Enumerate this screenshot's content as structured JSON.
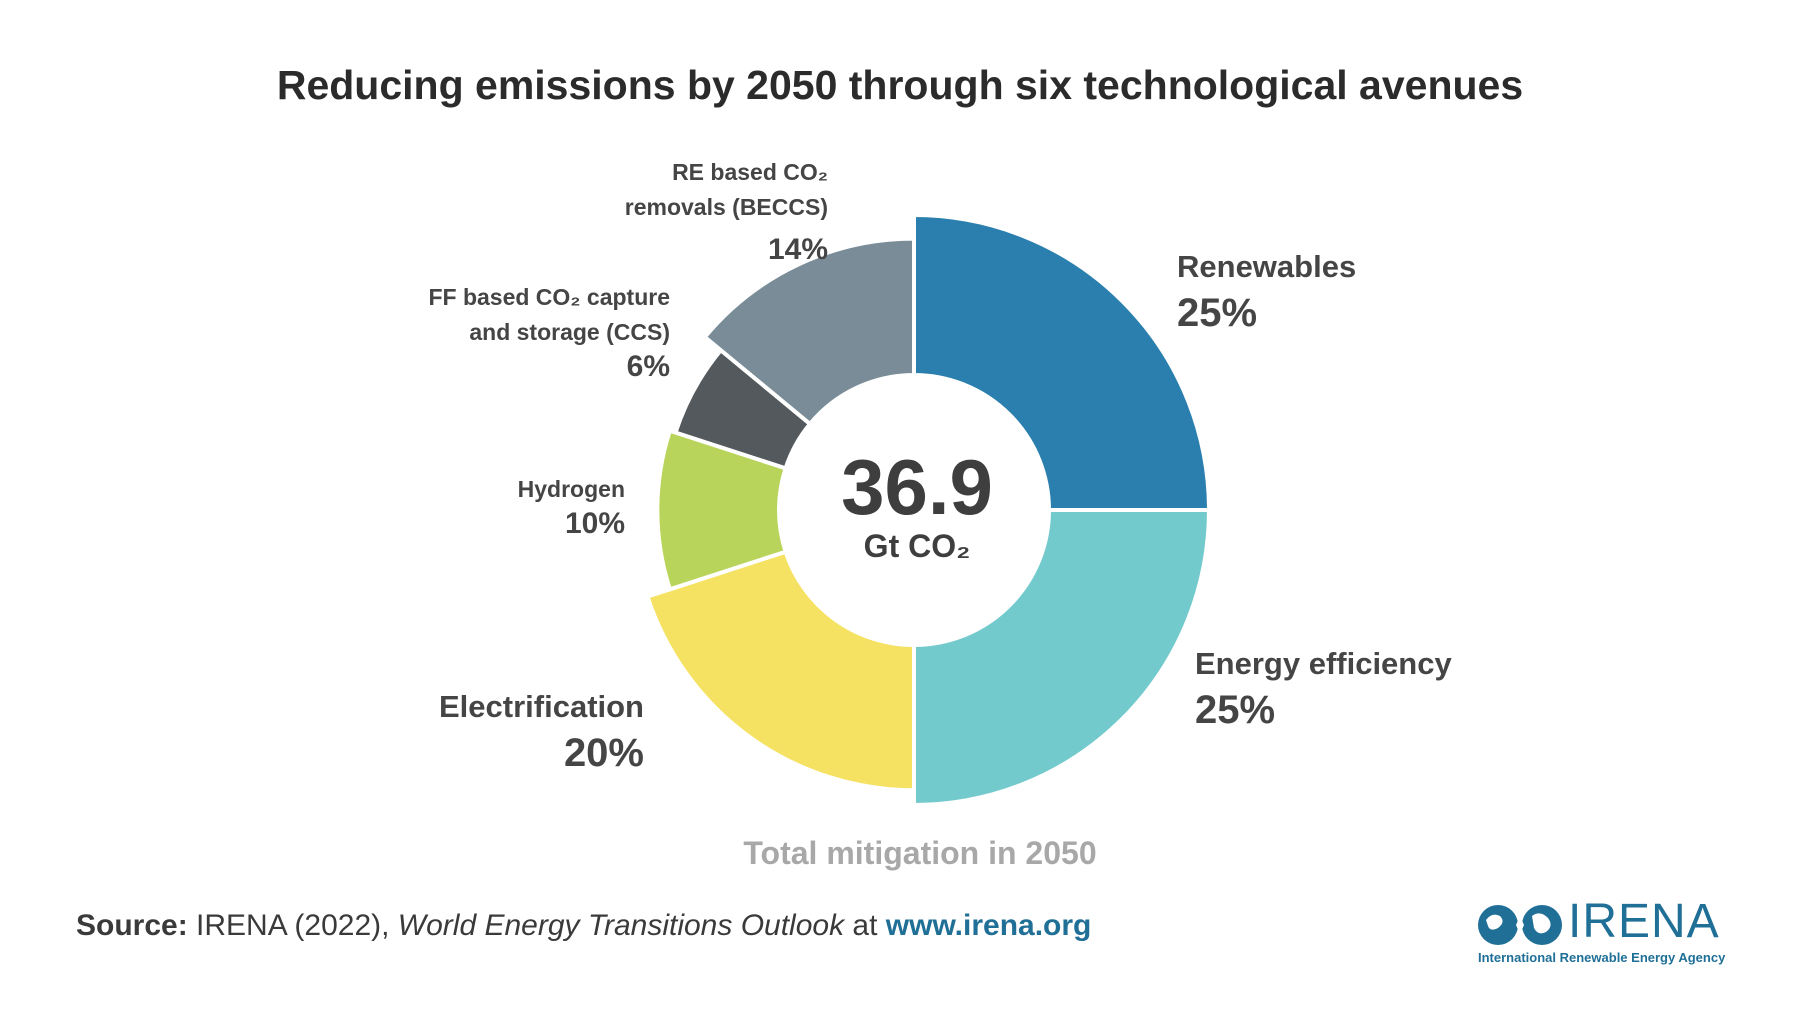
{
  "chart_data": {
    "type": "pie",
    "title": "Reducing emissions by 2050 through six technological avenues",
    "center_value": "36.9",
    "center_unit": "Gt CO₂",
    "caption": "Total mitigation in 2050",
    "slices": [
      {
        "key": "renewables",
        "name": "Renewables",
        "value": 25,
        "label": "25%",
        "color": "#2a7fae"
      },
      {
        "key": "efficiency",
        "name": "Energy efficiency",
        "value": 25,
        "label": "25%",
        "color": "#73cacd"
      },
      {
        "key": "electrification",
        "name": "Electrification",
        "value": 20,
        "label": "20%",
        "color": "#f6e262"
      },
      {
        "key": "hydrogen",
        "name": "Hydrogen",
        "value": 10,
        "label": "10%",
        "color": "#b9d45a"
      },
      {
        "key": "ccs",
        "name": "FF based CO₂ capture and storage (CCS)",
        "value": 6,
        "label": "6%",
        "color": "#53595d"
      },
      {
        "key": "beccs",
        "name": "RE based CO₂ removals (BECCS)",
        "value": 14,
        "label": "14%",
        "color": "#7a8c98"
      }
    ]
  },
  "source": {
    "prefix": "Source:",
    "org": " IRENA (2022), ",
    "publication": "World Energy Transitions Outlook",
    "connector": " at ",
    "url": "www.irena.org"
  },
  "logo": {
    "name": "IRENA",
    "subtitle": "International Renewable Energy Agency",
    "color": "#1f6f97"
  }
}
